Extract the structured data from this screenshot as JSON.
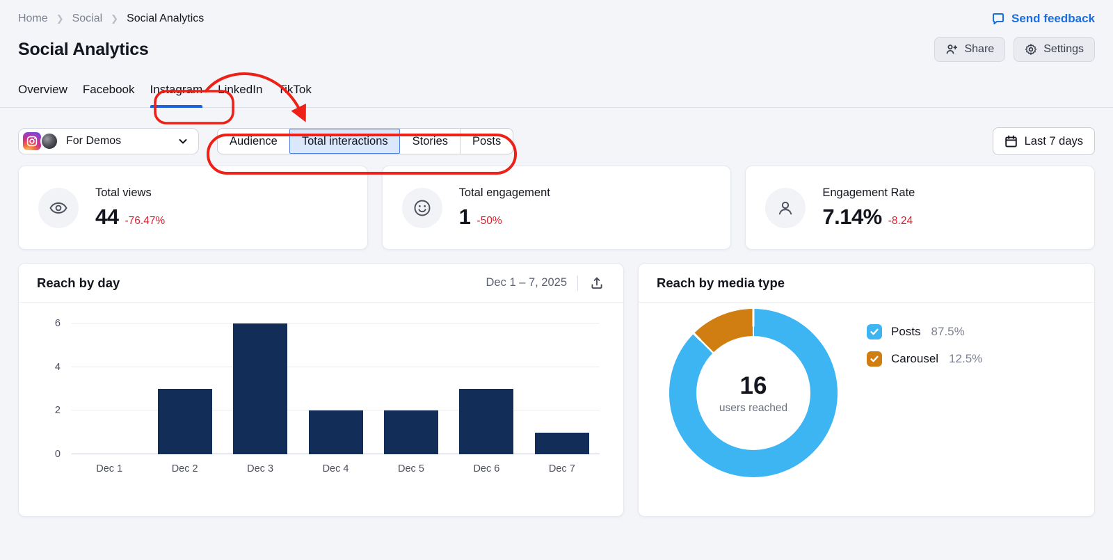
{
  "breadcrumb": {
    "items": [
      "Home",
      "Social"
    ],
    "current": "Social Analytics"
  },
  "header": {
    "title": "Social Analytics",
    "send_feedback_label": "Send feedback",
    "share_label": "Share",
    "settings_label": "Settings"
  },
  "tabs": [
    {
      "label": "Overview",
      "active": false
    },
    {
      "label": "Facebook",
      "active": false
    },
    {
      "label": "Instagram",
      "active": true
    },
    {
      "label": "LinkedIn",
      "active": false
    },
    {
      "label": "TikTok",
      "active": false
    }
  ],
  "profile_selector": {
    "name": "For Demos"
  },
  "subtabs": [
    {
      "label": "Audience",
      "selected": false
    },
    {
      "label": "Total interactions",
      "selected": true
    },
    {
      "label": "Stories",
      "selected": false
    },
    {
      "label": "Posts",
      "selected": false
    }
  ],
  "date_range_button": {
    "label": "Last 7 days"
  },
  "stats": [
    {
      "label": "Total views",
      "value": "44",
      "delta": "-76.47%",
      "icon": "eye-icon"
    },
    {
      "label": "Total engagement",
      "value": "1",
      "delta": "-50%",
      "icon": "smiley-icon"
    },
    {
      "label": "Engagement Rate",
      "value": "7.14%",
      "delta": "-8.24",
      "icon": "person-icon"
    }
  ],
  "reach_by_day": {
    "title": "Reach by day",
    "date_range": "Dec 1 – 7, 2025"
  },
  "reach_by_media": {
    "title": "Reach by media type",
    "center_value": "16",
    "center_label": "users reached"
  },
  "icons": {
    "feedback": "speech-bubble-icon",
    "share": "person-plus-icon",
    "settings": "gear-icon",
    "profile": "instagram-icon",
    "dropdown": "chevron-down-icon",
    "date": "calendar-icon",
    "export": "export-icon",
    "legend": "checkbox-checked-icon"
  },
  "colors": {
    "bar": "#122d58",
    "donut_posts": "#3cb5f2",
    "donut_carousel": "#d07d12",
    "delta_negative": "#dc1f2e",
    "annotation_red": "#ee2118",
    "accent_blue": "#1c63d9",
    "page_bg": "#f4f5f8"
  },
  "chart_data": [
    {
      "type": "bar",
      "title": "Reach by day",
      "categories": [
        "Dec 1",
        "Dec 2",
        "Dec 3",
        "Dec 4",
        "Dec 5",
        "Dec 6",
        "Dec 7"
      ],
      "values": [
        0,
        3,
        6,
        2,
        2,
        3,
        1
      ],
      "xlabel": "",
      "ylabel": "",
      "ylim": [
        0,
        6
      ],
      "yticks": [
        0,
        2,
        4,
        6
      ],
      "grid": true,
      "bar_color": "#122d58"
    },
    {
      "type": "pie",
      "donut": true,
      "title": "Reach by media type",
      "labels": [
        "Posts",
        "Carousel"
      ],
      "values": [
        87.5,
        12.5
      ],
      "display_values": [
        "87.5%",
        "12.5%"
      ],
      "colors": [
        "#3cb5f2",
        "#d07d12"
      ],
      "center_value": "16",
      "center_label": "users reached",
      "legend_position": "right"
    }
  ]
}
